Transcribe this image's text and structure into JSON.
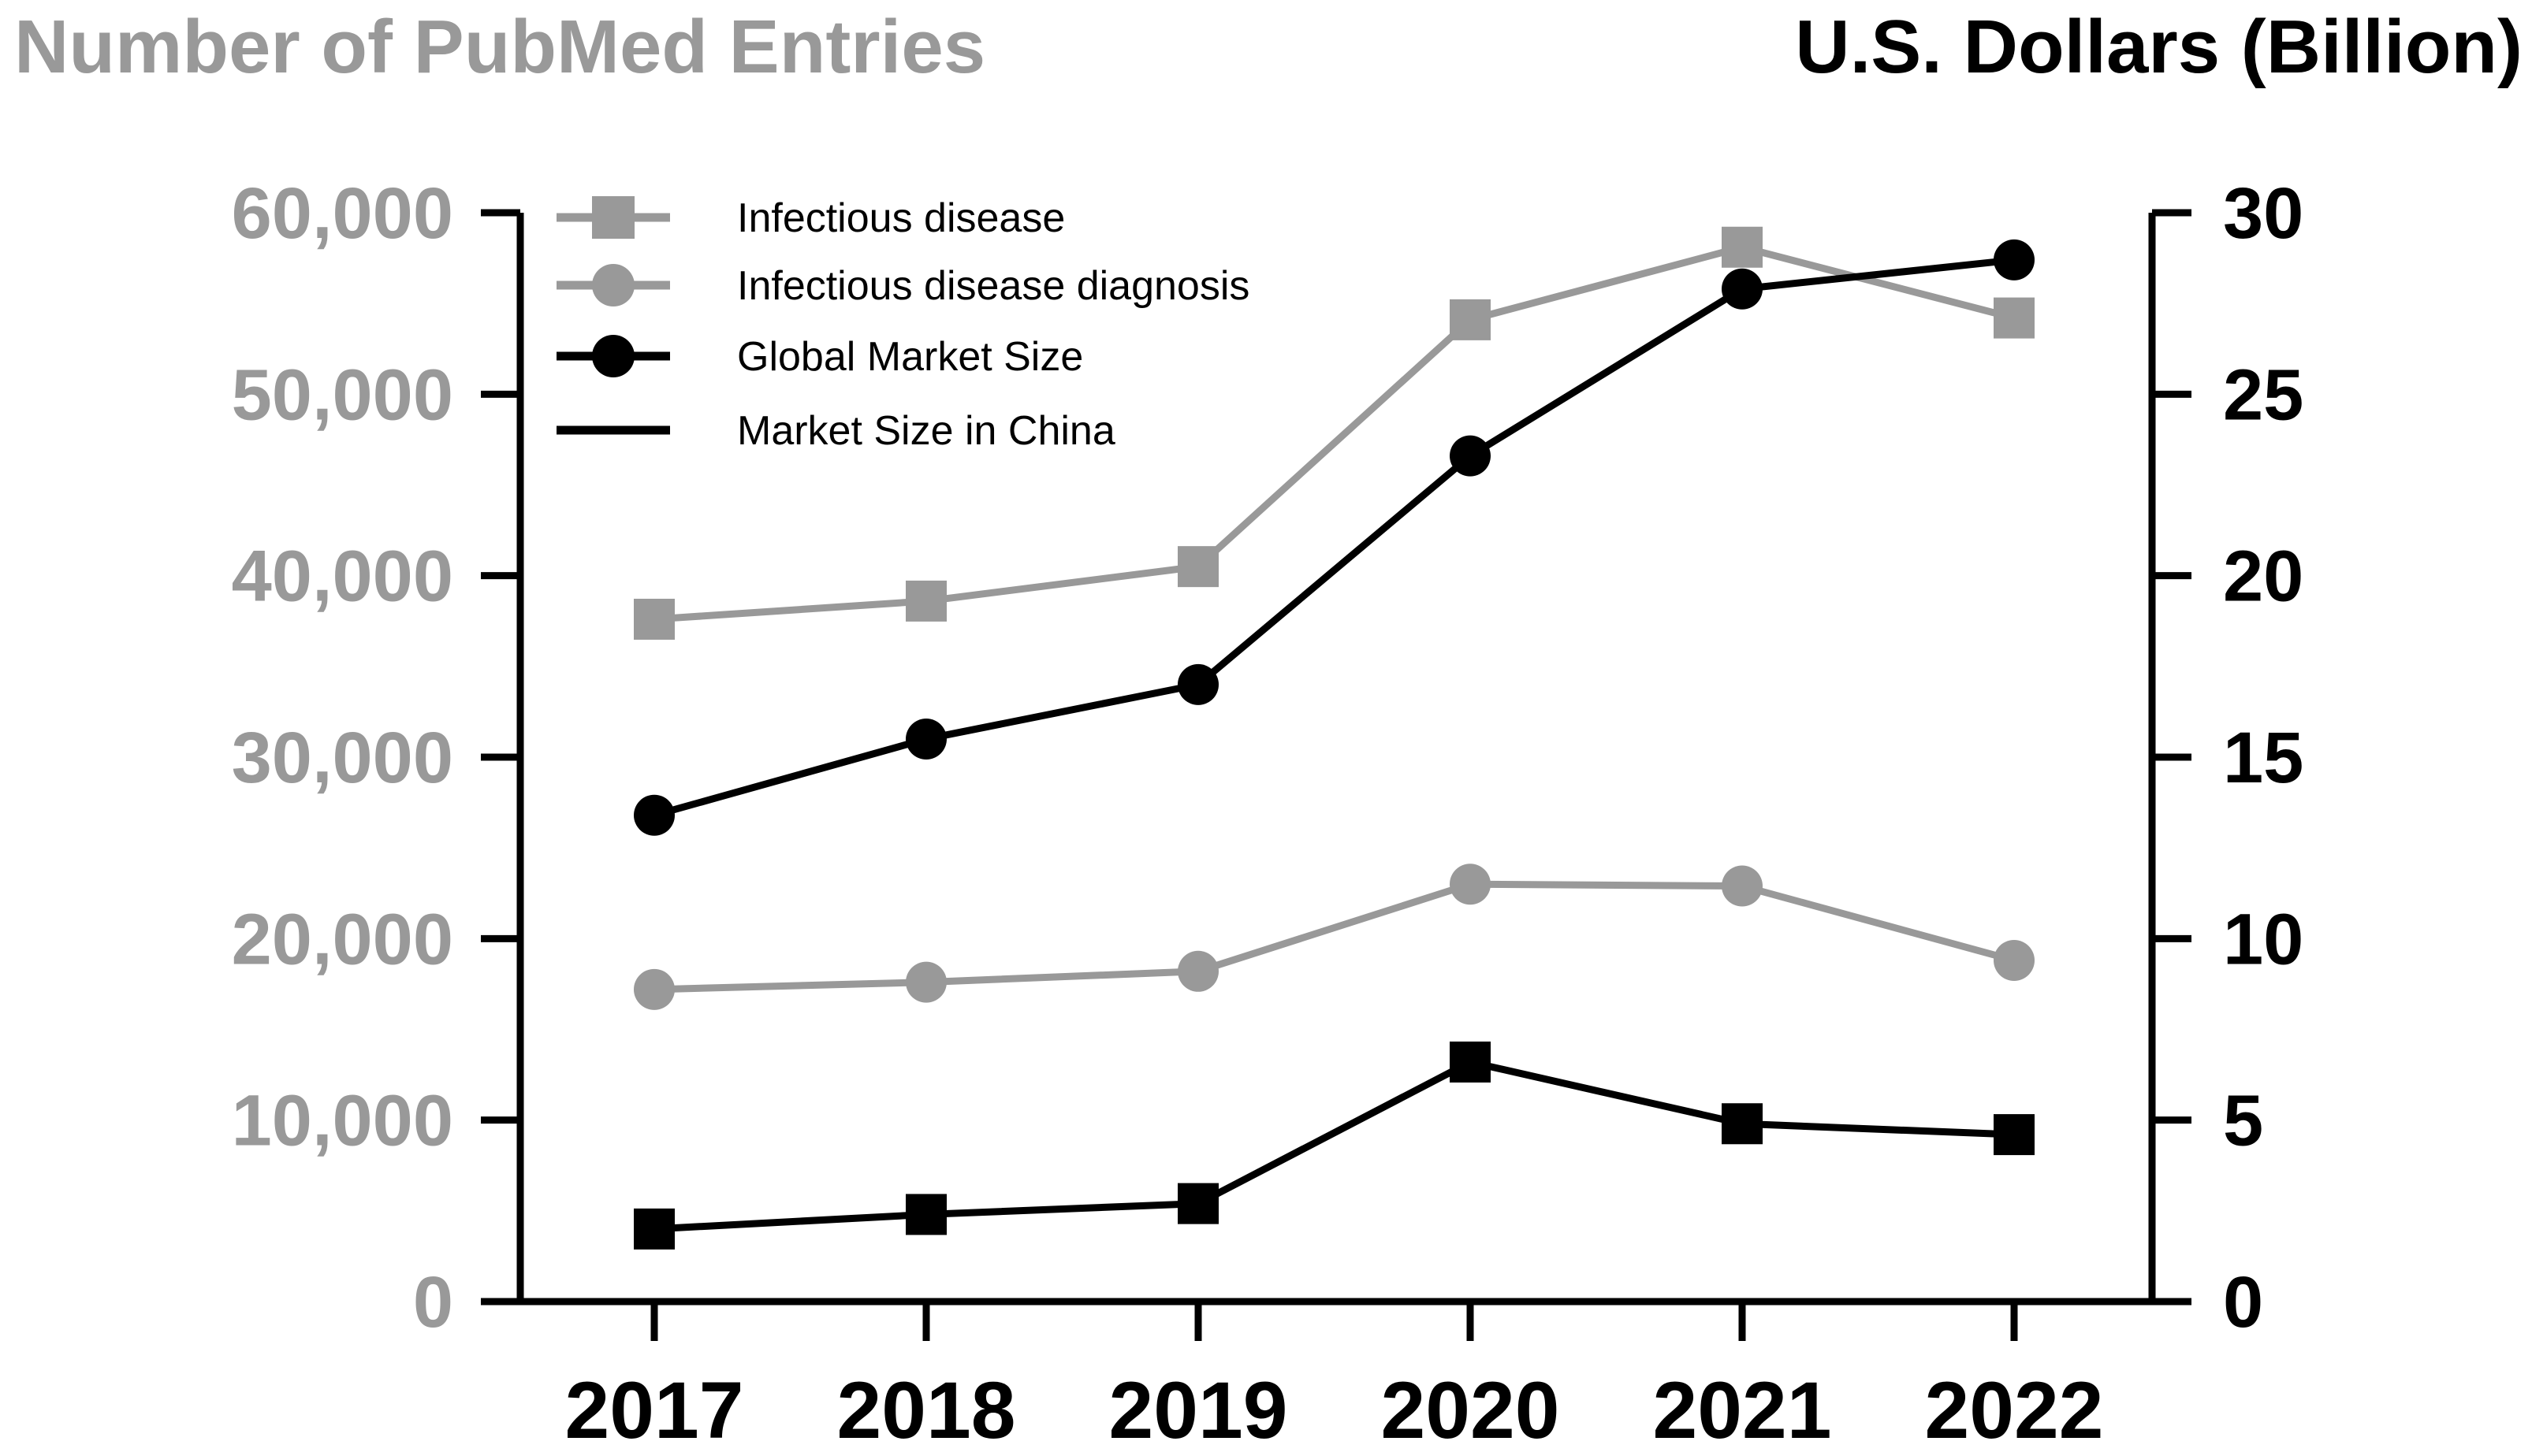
{
  "chart_data": {
    "type": "line",
    "left_axis_title": "Number of PubMed Entries",
    "right_axis_title": "U.S. Dollars (Billion)",
    "categories": [
      "2017",
      "2018",
      "2019",
      "2020",
      "2021",
      "2022"
    ],
    "left_axis": {
      "range": [
        0,
        60000
      ],
      "ticks": [
        0,
        10000,
        20000,
        30000,
        40000,
        50000,
        60000
      ],
      "tick_labels": [
        "0",
        "10,000",
        "20,000",
        "30,000",
        "40,000",
        "50,000",
        "60,000"
      ]
    },
    "right_axis": {
      "range": [
        0,
        30
      ],
      "ticks": [
        0,
        5,
        10,
        15,
        20,
        25,
        30
      ],
      "tick_labels": [
        "0",
        "5",
        "10",
        "15",
        "20",
        "25",
        "30"
      ]
    },
    "legend_position": "top-left",
    "series": [
      {
        "name": "Infectious disease",
        "axis": "left",
        "color": "#999999",
        "marker": "square",
        "values": [
          37600,
          38600,
          40500,
          54100,
          58100,
          54200
        ]
      },
      {
        "name": "Infectious disease diagnosis",
        "axis": "left",
        "color": "#999999",
        "marker": "circle",
        "values": [
          17200,
          17600,
          18200,
          23000,
          22900,
          18800
        ]
      },
      {
        "name": "Global Market Size",
        "axis": "right",
        "color": "#000000",
        "marker": "circle",
        "values": [
          13.4,
          15.5,
          17.0,
          23.3,
          27.9,
          28.7
        ]
      },
      {
        "name": "Market Size in China",
        "axis": "right",
        "color": "#000000",
        "marker": "square",
        "values": [
          2.0,
          2.4,
          2.7,
          6.6,
          4.9,
          4.6
        ]
      }
    ]
  }
}
